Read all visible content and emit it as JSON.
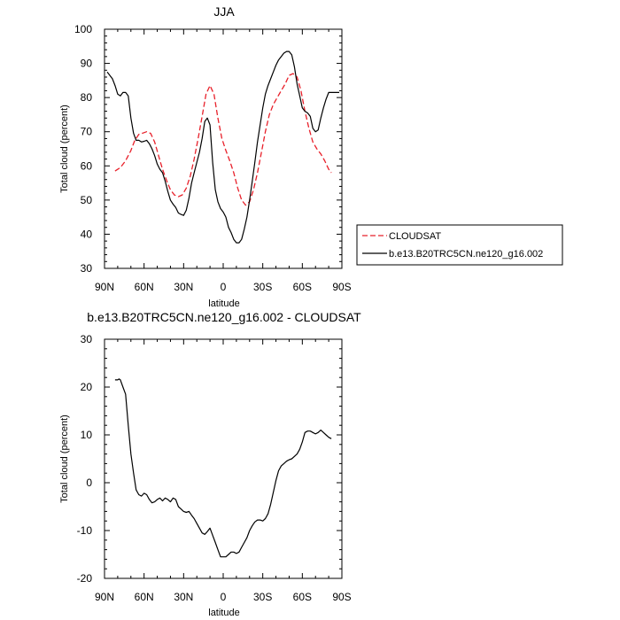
{
  "chart_data": [
    {
      "type": "line",
      "title": "JJA",
      "xlabel": "latitude",
      "ylabel": "Total cloud (percent)",
      "xlim": [
        90,
        -90
      ],
      "ylim": [
        30,
        100
      ],
      "x_ticks": [
        90,
        60,
        30,
        0,
        -30,
        -60,
        -90
      ],
      "x_tick_labels": [
        "90N",
        "60N",
        "30N",
        "0",
        "30S",
        "60S",
        "90S"
      ],
      "y_ticks": [
        30,
        40,
        50,
        60,
        70,
        80,
        90,
        100
      ],
      "y_tick_labels": [
        "30",
        "40",
        "50",
        "60",
        "70",
        "80",
        "90",
        "100"
      ],
      "legend": {
        "placement": "outside-right"
      },
      "series": [
        {
          "name": "CLOUDSAT",
          "color": "#e8202a",
          "dash": "dashed",
          "x": [
            82,
            78,
            74,
            70,
            67,
            64,
            61,
            58,
            55,
            52,
            49,
            46,
            43,
            40,
            37,
            34,
            31,
            28,
            25,
            22,
            19,
            16,
            13,
            10,
            7,
            4,
            1,
            -2,
            -5,
            -8,
            -11,
            -14,
            -17,
            -20,
            -23,
            -26,
            -29,
            -32,
            -35,
            -38,
            -41,
            -44,
            -47,
            -50,
            -53,
            -56,
            -59,
            -62,
            -65,
            -68,
            -71,
            -74,
            -77,
            -80,
            -82
          ],
          "values": [
            58.5,
            59.5,
            61.5,
            64.5,
            67.5,
            69.2,
            69.6,
            70.0,
            69.5,
            67.0,
            63.0,
            59.0,
            55.8,
            53.0,
            51.5,
            51.0,
            51.5,
            53.5,
            57.0,
            62.0,
            68.0,
            74.5,
            81.0,
            83.5,
            81.0,
            74.0,
            68.0,
            64.5,
            61.5,
            58.0,
            53.5,
            50.0,
            48.5,
            49.5,
            53.0,
            58.0,
            64.0,
            70.0,
            75.0,
            78.0,
            80.0,
            82.0,
            84.0,
            86.5,
            87.0,
            86.0,
            82.0,
            76.0,
            71.0,
            67.0,
            65.0,
            63.5,
            61.5,
            59.0,
            58.0
          ]
        },
        {
          "name": "b.e13.B20TRC5CN.ne120_g16.002",
          "color": "#000000",
          "dash": "solid",
          "x": [
            88,
            86,
            84,
            82,
            80,
            78,
            76,
            74,
            72,
            70,
            68,
            66,
            64,
            62,
            60,
            58,
            56,
            54,
            52,
            50,
            48,
            46,
            44,
            42,
            40,
            38,
            36,
            34,
            32,
            30,
            28,
            26,
            24,
            22,
            20,
            18,
            16,
            14,
            12,
            10,
            8,
            6,
            4,
            2,
            0,
            -2,
            -4,
            -6,
            -8,
            -10,
            -12,
            -14,
            -16,
            -18,
            -20,
            -22,
            -24,
            -26,
            -28,
            -30,
            -32,
            -34,
            -36,
            -38,
            -40,
            -42,
            -44,
            -46,
            -48,
            -50,
            -52,
            -54,
            -56,
            -58,
            -60,
            -62,
            -64,
            -66,
            -68,
            -70,
            -72,
            -74,
            -76,
            -78,
            -80,
            -82,
            -84,
            -86,
            -88
          ],
          "values": [
            87.5,
            86.5,
            85.5,
            83.5,
            81.0,
            80.5,
            81.5,
            81.5,
            80.5,
            74.0,
            69.5,
            67.5,
            67.5,
            67.0,
            67.2,
            67.5,
            66.5,
            65.0,
            63.0,
            60.5,
            59.0,
            58.0,
            55.5,
            52.5,
            50.0,
            48.8,
            47.8,
            46.2,
            45.8,
            45.5,
            47.0,
            50.5,
            55.0,
            58.0,
            61.0,
            64.0,
            68.0,
            73.0,
            74.0,
            72.0,
            61.0,
            53.0,
            49.5,
            47.5,
            46.5,
            45.0,
            42.0,
            40.5,
            38.5,
            37.5,
            37.5,
            38.5,
            41.5,
            45.0,
            50.0,
            55.5,
            61.0,
            67.0,
            72.0,
            77.0,
            81.0,
            83.5,
            85.5,
            87.5,
            89.5,
            91.0,
            92.0,
            93.0,
            93.5,
            93.5,
            92.5,
            89.0,
            84.0,
            80.5,
            77.0,
            76.0,
            75.5,
            74.5,
            71.0,
            70.0,
            70.5,
            74.0,
            77.0,
            79.5,
            81.5,
            81.5,
            81.5,
            81.5,
            81.5
          ]
        }
      ]
    },
    {
      "type": "line",
      "title": "b.e13.B20TRC5CN.ne120_g16.002 - CLOUDSAT",
      "xlabel": "latitude",
      "ylabel": "Total cloud (percent)",
      "xlim": [
        90,
        -90
      ],
      "ylim": [
        -20,
        30
      ],
      "x_ticks": [
        90,
        60,
        30,
        0,
        -30,
        -60,
        -90
      ],
      "x_tick_labels": [
        "90N",
        "60N",
        "30N",
        "0",
        "30S",
        "60S",
        "90S"
      ],
      "y_ticks": [
        -20,
        -10,
        0,
        10,
        20,
        30
      ],
      "y_tick_labels": [
        "-20",
        "-10",
        "0",
        "10",
        "20",
        "30"
      ],
      "series": [
        {
          "color": "#000000",
          "dash": "solid",
          "x": [
            82,
            81,
            80,
            79,
            78,
            76,
            74,
            72,
            70,
            68,
            66,
            64,
            62,
            60,
            58,
            56,
            54,
            52,
            50,
            48,
            46,
            44,
            42,
            40,
            38,
            36,
            34,
            32,
            30,
            28,
            26,
            24,
            22,
            20,
            18,
            16,
            14,
            12,
            10,
            8,
            6,
            4,
            2,
            0,
            -2,
            -4,
            -6,
            -8,
            -10,
            -12,
            -14,
            -16,
            -18,
            -20,
            -22,
            -24,
            -26,
            -28,
            -30,
            -32,
            -34,
            -36,
            -38,
            -40,
            -42,
            -44,
            -46,
            -48,
            -50,
            -52,
            -54,
            -56,
            -58,
            -60,
            -62,
            -64,
            -66,
            -68,
            -70,
            -72,
            -74,
            -76,
            -78,
            -80,
            -82
          ],
          "values": [
            21.5,
            21.5,
            21.5,
            21.7,
            21.5,
            20.0,
            18.5,
            12.0,
            6.0,
            2.0,
            -1.5,
            -2.5,
            -2.8,
            -2.2,
            -2.5,
            -3.5,
            -4.2,
            -4.0,
            -3.5,
            -3.2,
            -3.8,
            -3.2,
            -3.5,
            -4.0,
            -3.2,
            -3.5,
            -5.0,
            -5.5,
            -6.0,
            -6.2,
            -6.0,
            -6.8,
            -7.5,
            -8.5,
            -9.5,
            -10.5,
            -10.8,
            -10.2,
            -9.5,
            -11.0,
            -12.5,
            -14.0,
            -15.5,
            -15.5,
            -15.5,
            -15.0,
            -14.5,
            -14.5,
            -14.8,
            -14.5,
            -13.5,
            -12.5,
            -11.5,
            -10.0,
            -9.0,
            -8.2,
            -7.8,
            -7.8,
            -8.0,
            -7.5,
            -6.5,
            -4.5,
            -2.0,
            0.5,
            2.5,
            3.5,
            4.0,
            4.5,
            4.8,
            5.0,
            5.5,
            6.0,
            7.0,
            8.5,
            10.5,
            10.8,
            10.8,
            10.5,
            10.2,
            10.5,
            11.0,
            10.5,
            10.0,
            9.5,
            9.2
          ]
        }
      ]
    }
  ]
}
